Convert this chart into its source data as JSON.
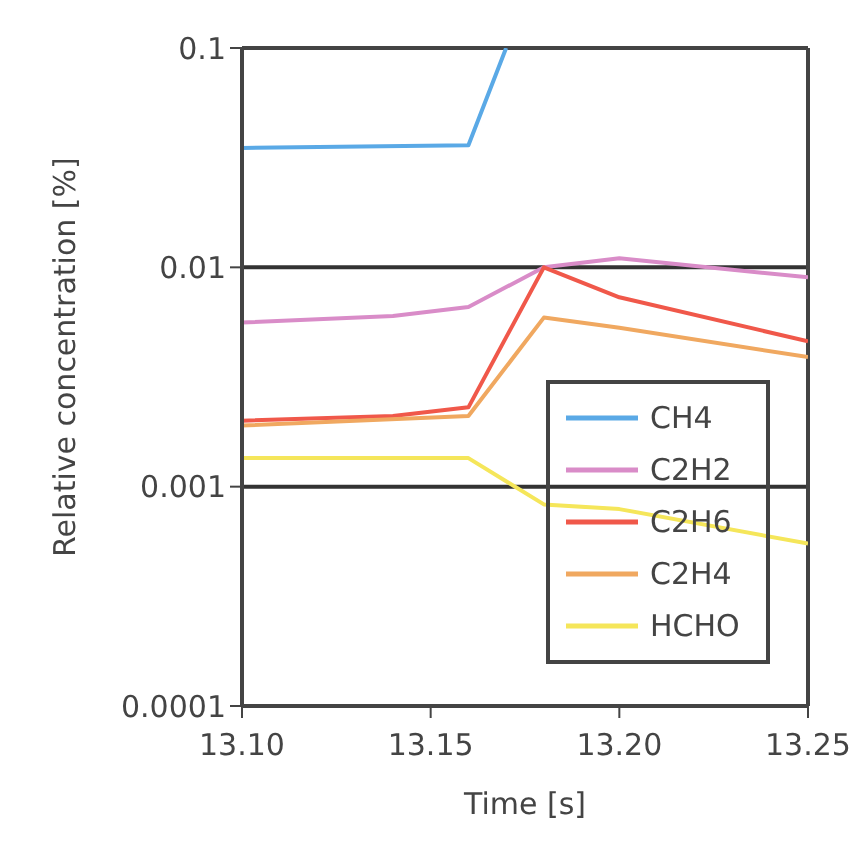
{
  "chart_data": {
    "type": "line",
    "xlabel": "Time [s]",
    "ylabel": "Relative concentration [%]",
    "log": "y",
    "grid": "y",
    "legend": "bottom right",
    "line_style": "solid",
    "marker": "none",
    "xlim": [
      13.1,
      13.25
    ],
    "xticks": [
      {
        "value": 13.1,
        "label": "13.10"
      },
      {
        "value": 13.15,
        "label": "13.15"
      },
      {
        "value": 13.2,
        "label": "13.20"
      },
      {
        "value": 13.25,
        "label": "13.25"
      }
    ],
    "ylim": [
      0.0001,
      0.1
    ],
    "yticks": [
      0.0001,
      0.001,
      0.01,
      0.1
    ],
    "series": [
      {
        "name": "CH4",
        "color": "#5aa9e6",
        "x": [
          13.1,
          13.16,
          13.17
        ],
        "values": [
          0.035,
          0.036,
          0.1
        ]
      },
      {
        "name": "C2H2",
        "color": "#d98cc8",
        "x": [
          13.1,
          13.14,
          13.16,
          13.18,
          13.2,
          13.25
        ],
        "values": [
          0.0056,
          0.006,
          0.0066,
          0.01,
          0.011,
          0.009
        ]
      },
      {
        "name": "C2H6",
        "color": "#f0584a",
        "x": [
          13.1,
          13.14,
          13.16,
          13.18,
          13.2,
          13.25
        ],
        "values": [
          0.002,
          0.0021,
          0.0023,
          0.01,
          0.0073,
          0.0046
        ]
      },
      {
        "name": "C2H4",
        "color": "#f0a860",
        "x": [
          13.1,
          13.16,
          13.18,
          13.2,
          13.25
        ],
        "values": [
          0.0019,
          0.0021,
          0.0059,
          0.0053,
          0.0039
        ]
      },
      {
        "name": "HCHO",
        "color": "#f5e65a",
        "x": [
          13.1,
          13.16,
          13.18,
          13.2,
          13.25
        ],
        "values": [
          0.00135,
          0.00135,
          0.00083,
          0.00079,
          0.00055
        ]
      }
    ]
  }
}
